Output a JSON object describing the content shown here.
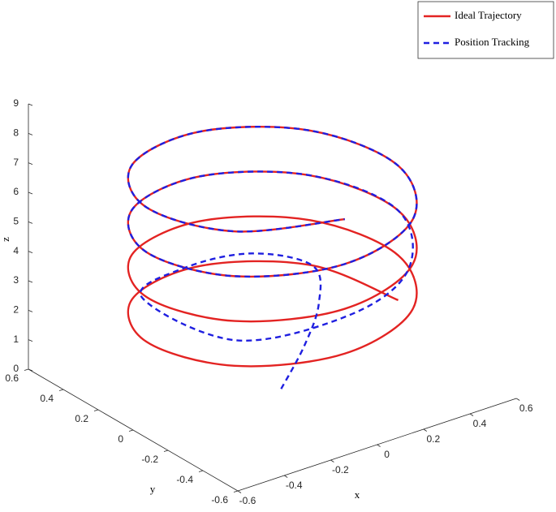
{
  "chart_data": {
    "type": "line3d",
    "xlabel": "x",
    "ylabel": "y",
    "zlabel": "z",
    "xlim": [
      -0.6,
      0.6
    ],
    "ylim": [
      -0.6,
      0.6
    ],
    "zlim": [
      0,
      9
    ],
    "xticks": [
      -0.6,
      -0.4,
      -0.2,
      0,
      0.2,
      0.4,
      0.6
    ],
    "yticks": [
      -0.6,
      -0.4,
      -0.2,
      0,
      0.2,
      0.4,
      0.6
    ],
    "zticks": [
      0,
      1,
      2,
      3,
      4,
      5,
      6,
      7,
      8,
      9
    ],
    "grid": false,
    "legend": "northeast",
    "series": [
      {
        "name": "Ideal Trajectory",
        "color": "#e32322",
        "style": "solid",
        "x": [
          0.496,
          0.394,
          0.061,
          -0.308,
          -0.496,
          -0.394,
          -0.061,
          0.308,
          0.496,
          0.394,
          0.061,
          -0.308,
          -0.496,
          -0.394,
          -0.061,
          0.308,
          0.496,
          0.394,
          0.061,
          -0.308,
          -0.496,
          -0.394,
          -0.061,
          0.308,
          0.496,
          0.394,
          0.061,
          -0.308,
          -0.496,
          -0.394,
          -0.061
        ],
        "y": [
          -0.061,
          0.308,
          0.496,
          0.394,
          0.061,
          -0.308,
          -0.496,
          -0.394,
          -0.061,
          0.308,
          0.496,
          0.394,
          0.061,
          -0.308,
          -0.496,
          -0.394,
          -0.061,
          0.308,
          0.496,
          0.394,
          0.061,
          -0.308,
          -0.496,
          -0.394,
          -0.061,
          0.308,
          0.496,
          0.394,
          0.061,
          -0.308,
          -0.496
        ],
        "z": [
          1.75,
          1.94,
          2.13,
          2.32,
          2.51,
          2.7,
          2.89,
          3.08,
          3.27,
          3.46,
          3.65,
          3.84,
          4.03,
          4.22,
          4.41,
          4.6,
          4.79,
          4.98,
          5.17,
          5.36,
          5.55,
          5.74,
          5.93,
          6.12,
          6.31,
          6.5,
          6.69,
          6.88,
          7.07,
          7.26,
          7.45
        ]
      },
      {
        "name": "Position Tracking",
        "color": "#1f1fe0",
        "style": "dashed",
        "x": [
          0,
          0.1,
          0.2,
          0.25,
          0.1,
          -0.15,
          -0.45,
          -0.38,
          0,
          0.3,
          0.496,
          0.394,
          0.061,
          -0.308,
          -0.496,
          -0.394,
          -0.061,
          0.308,
          0.496,
          0.394,
          0.061,
          -0.308,
          -0.496,
          -0.394,
          -0.061
        ],
        "y": [
          -0.05,
          -0.05,
          0,
          0.1,
          0.25,
          0.3,
          0.15,
          -0.3,
          -0.45,
          -0.38,
          -0.061,
          0.308,
          0.496,
          0.394,
          0.061,
          -0.308,
          -0.496,
          -0.394,
          -0.061,
          0.308,
          0.496,
          0.394,
          0.061,
          -0.308,
          -0.496
        ],
        "z": [
          0,
          1.2,
          2.2,
          3.0,
          3.3,
          3.3,
          3.6,
          3.5,
          3.9,
          4.4,
          4.79,
          4.98,
          5.17,
          5.36,
          5.55,
          5.74,
          5.93,
          6.12,
          6.31,
          6.5,
          6.69,
          6.88,
          7.07,
          7.26,
          7.45
        ]
      }
    ]
  }
}
